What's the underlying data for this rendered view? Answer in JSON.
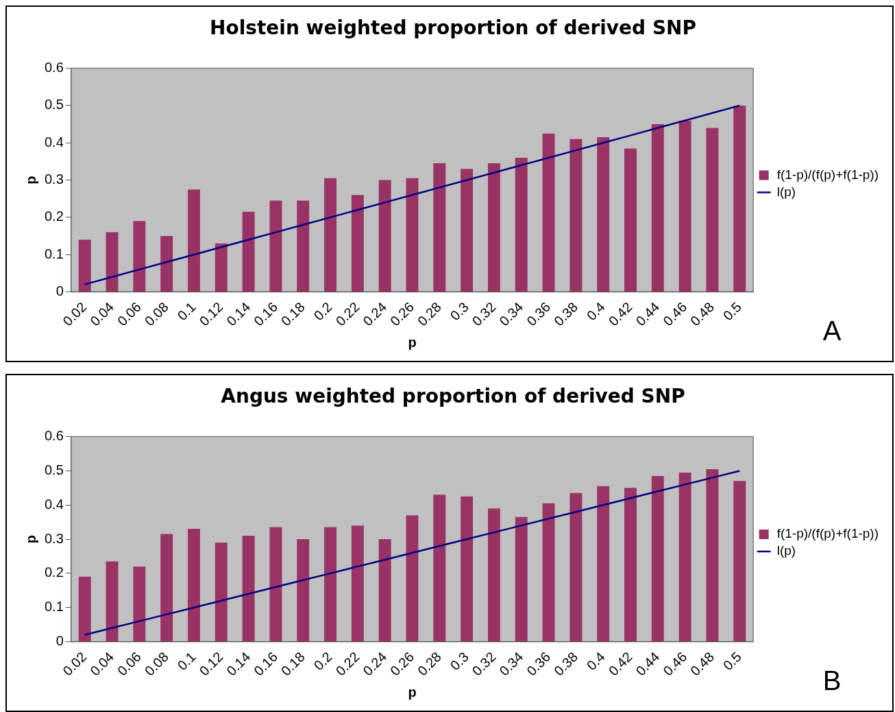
{
  "chart_data": [
    {
      "type": "bar",
      "title": "Holstein weighted proportion of derived SNP",
      "xlabel": "p",
      "ylabel": "p",
      "categories": [
        "0.02",
        "0.04",
        "0.06",
        "0.08",
        "0.1",
        "0.12",
        "0.14",
        "0.16",
        "0.18",
        "0.2",
        "0.22",
        "0.24",
        "0.26",
        "0.28",
        "0.3",
        "0.32",
        "0.34",
        "0.36",
        "0.38",
        "0.4",
        "0.42",
        "0.44",
        "0.46",
        "0.48",
        "0.5"
      ],
      "series": [
        {
          "name": "f(1-p)/(f(p)+f(1-p))",
          "color": "#993366",
          "values": [
            0.14,
            0.16,
            0.19,
            0.15,
            0.275,
            0.13,
            0.215,
            0.245,
            0.245,
            0.305,
            0.26,
            0.3,
            0.305,
            0.345,
            0.33,
            0.345,
            0.36,
            0.425,
            0.41,
            0.415,
            0.385,
            0.45,
            0.46,
            0.44,
            0.5
          ]
        },
        {
          "name": "l(p)",
          "type": "line",
          "color": "#000080",
          "values": [
            0.02,
            0.04,
            0.06,
            0.08,
            0.1,
            0.12,
            0.14,
            0.16,
            0.18,
            0.2,
            0.22,
            0.24,
            0.26,
            0.28,
            0.3,
            0.32,
            0.34,
            0.36,
            0.38,
            0.4,
            0.42,
            0.44,
            0.46,
            0.48,
            0.5
          ]
        }
      ],
      "ylim": [
        0,
        0.6
      ],
      "yticks": [
        0,
        0.1,
        0.2,
        0.3,
        0.4,
        0.5,
        0.6
      ],
      "grid": false,
      "legend": "right",
      "marker": "none",
      "annotations": [
        "A"
      ]
    },
    {
      "type": "bar",
      "title": "Angus weighted proportion of derived SNP",
      "xlabel": "p",
      "ylabel": "p",
      "categories": [
        "0.02",
        "0.04",
        "0.06",
        "0.08",
        "0.1",
        "0.12",
        "0.14",
        "0.16",
        "0.18",
        "0.2",
        "0.22",
        "0.24",
        "0.26",
        "0.28",
        "0.3",
        "0.32",
        "0.34",
        "0.36",
        "0.38",
        "0.4",
        "0.42",
        "0.44",
        "0.46",
        "0.48",
        "0.5"
      ],
      "series": [
        {
          "name": "f(1-p)/(f(p)+f(1-p))",
          "color": "#993366",
          "values": [
            0.19,
            0.235,
            0.22,
            0.315,
            0.33,
            0.29,
            0.31,
            0.335,
            0.3,
            0.335,
            0.34,
            0.3,
            0.37,
            0.43,
            0.425,
            0.39,
            0.365,
            0.405,
            0.435,
            0.455,
            0.45,
            0.485,
            0.495,
            0.505,
            0.47
          ]
        },
        {
          "name": "l(p)",
          "type": "line",
          "color": "#000080",
          "values": [
            0.02,
            0.04,
            0.06,
            0.08,
            0.1,
            0.12,
            0.14,
            0.16,
            0.18,
            0.2,
            0.22,
            0.24,
            0.26,
            0.28,
            0.3,
            0.32,
            0.34,
            0.36,
            0.38,
            0.4,
            0.42,
            0.44,
            0.46,
            0.48,
            0.5
          ]
        }
      ],
      "ylim": [
        0,
        0.6
      ],
      "yticks": [
        0,
        0.1,
        0.2,
        0.3,
        0.4,
        0.5,
        0.6
      ],
      "grid": false,
      "legend": "right",
      "marker": "none",
      "annotations": [
        "B"
      ]
    }
  ]
}
